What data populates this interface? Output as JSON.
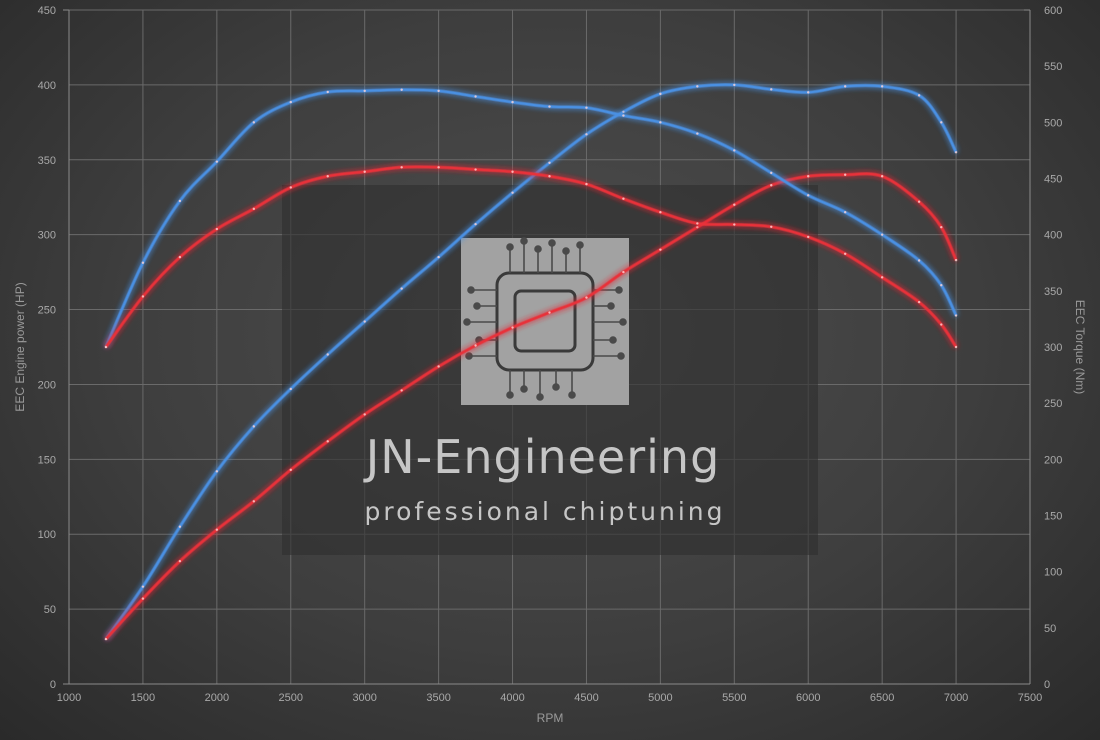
{
  "chart_data": {
    "type": "line",
    "xlabel": "RPM",
    "ylabel": "EEC Engine power (HP)",
    "y2label": "EEC Torque (Nm)",
    "xlim": [
      1000,
      7500
    ],
    "ylim": [
      0,
      450
    ],
    "y2lim": [
      0,
      600
    ],
    "x_ticks": [
      1000,
      1500,
      2000,
      2500,
      3000,
      3500,
      4000,
      4500,
      5000,
      5500,
      6000,
      6500,
      7000,
      7500
    ],
    "y_ticks": [
      0,
      50,
      100,
      150,
      200,
      250,
      300,
      350,
      400,
      450
    ],
    "y2_ticks": [
      0,
      50,
      100,
      150,
      200,
      250,
      300,
      350,
      400,
      450,
      500,
      550,
      600
    ],
    "grid": true,
    "series": [
      {
        "color": "#4a90e2",
        "axis": "left",
        "x": [
          1250,
          1500,
          1750,
          2000,
          2250,
          2500,
          2750,
          3000,
          3250,
          3500,
          3750,
          4000,
          4250,
          4500,
          4750,
          5000,
          5250,
          5500,
          5750,
          6000,
          6250,
          6500,
          6750,
          6900,
          7000
        ],
        "y": [
          30,
          65,
          105,
          142,
          172,
          197,
          220,
          242,
          264,
          285,
          307,
          328,
          348,
          367,
          382,
          394,
          399,
          400,
          397,
          395,
          399,
          399,
          393,
          375,
          355
        ]
      },
      {
        "color": "#e8313a",
        "axis": "left",
        "x": [
          1250,
          1500,
          1750,
          2000,
          2250,
          2500,
          2750,
          3000,
          3250,
          3500,
          3750,
          4000,
          4250,
          4500,
          4750,
          5000,
          5250,
          5500,
          5750,
          6000,
          6250,
          6500,
          6750,
          6900,
          7000
        ],
        "y": [
          30,
          57,
          82,
          103,
          122,
          143,
          162,
          180,
          196,
          212,
          226,
          238,
          248,
          258,
          275,
          290,
          305,
          320,
          333,
          339,
          340,
          339,
          322,
          305,
          283
        ]
      },
      {
        "color": "#4a90e2",
        "axis": "right",
        "x": [
          1250,
          1500,
          1750,
          2000,
          2250,
          2500,
          2750,
          3000,
          3250,
          3500,
          3750,
          4000,
          4250,
          4500,
          4750,
          5000,
          5250,
          5500,
          5750,
          6000,
          6250,
          6500,
          6750,
          6900,
          7000
        ],
        "y": [
          300,
          375,
          430,
          465,
          500,
          518,
          527,
          528,
          529,
          528,
          523,
          518,
          514,
          513,
          506,
          500,
          490,
          475,
          455,
          435,
          420,
          400,
          377,
          355,
          328
        ]
      },
      {
        "color": "#e8313a",
        "axis": "right",
        "x": [
          1250,
          1500,
          1750,
          2000,
          2250,
          2500,
          2750,
          3000,
          3250,
          3500,
          3750,
          4000,
          4250,
          4500,
          4750,
          5000,
          5250,
          5500,
          5750,
          6000,
          6250,
          6500,
          6750,
          6900,
          7000
        ],
        "y": [
          300,
          345,
          380,
          405,
          423,
          442,
          452,
          456,
          460,
          460,
          458,
          456,
          452,
          445,
          432,
          420,
          410,
          409,
          407,
          398,
          383,
          362,
          340,
          320,
          300
        ]
      }
    ]
  },
  "watermark": {
    "title": "JN-Engineering",
    "subtitle": "professional chiptuning"
  }
}
